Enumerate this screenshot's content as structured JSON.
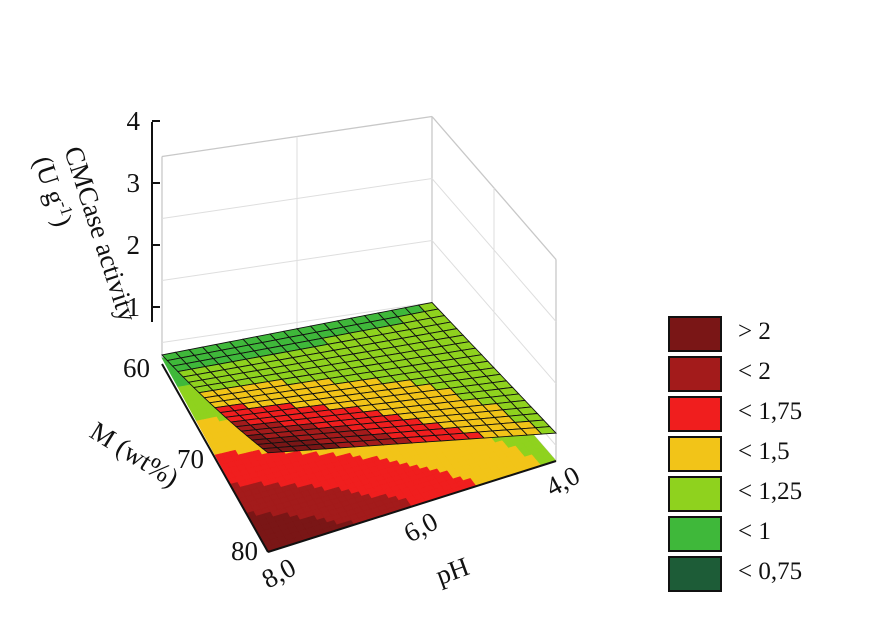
{
  "chart_data": {
    "type": "surface3d",
    "zlabel_line1": "CMCase activity",
    "zlabel_line2": "(U g-1)",
    "zlabel_line2_main": "(U g",
    "zlabel_line2_sup": "-1",
    "zlabel_line3": ")",
    "xlabel": "pH",
    "ylabel": "M (wt%)",
    "z_ticks": [
      "1",
      "2",
      "3",
      "4"
    ],
    "zlim": [
      0.75,
      4
    ],
    "x_ticks": [
      "4,0",
      "6,0",
      "8,0"
    ],
    "y_ticks": [
      "60",
      "70",
      "80"
    ],
    "x_range": [
      4.0,
      8.0
    ],
    "y_range": [
      60,
      80
    ],
    "surface_corners": {
      "pH4_M60": 1.0,
      "pH8_M60": 0.8,
      "pH4_M80": 1.2,
      "pH8_M80": 2.1
    },
    "legend": [
      {
        "label": "> 2",
        "color": "#7a1616"
      },
      {
        "label": "< 2",
        "color": "#a31b1b"
      },
      {
        "label": "< 1,75",
        "color": "#f01e1e"
      },
      {
        "label": "< 1,5",
        "color": "#f2c418"
      },
      {
        "label": "< 1,25",
        "color": "#8fd21e"
      },
      {
        "label": "< 1",
        "color": "#3fb83a"
      },
      {
        "label": "< 0,75",
        "color": "#1d5c37"
      }
    ],
    "legend_position": "right"
  }
}
